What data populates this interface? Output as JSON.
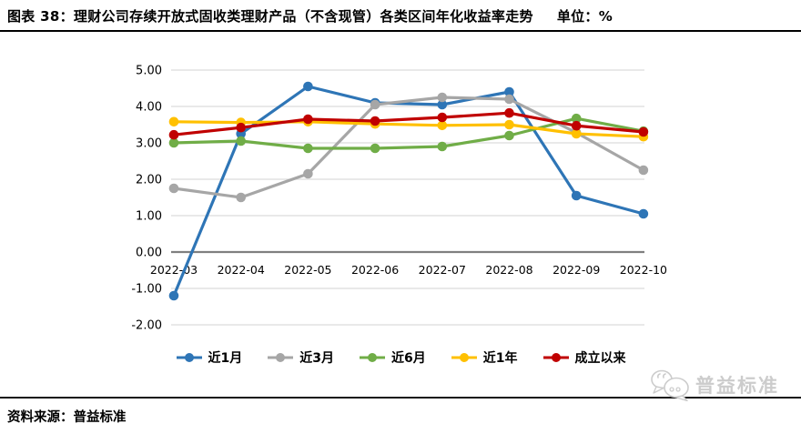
{
  "figure": {
    "title": "图表 38：理财公司存续开放式固收类理财产品（不含现管）各类区间年化收益率走势",
    "unit_label": "单位：%",
    "source": "资料来源：普益标准",
    "watermark_text": "普益标准"
  },
  "chart_data": {
    "type": "line",
    "title": "理财公司存续开放式固收类理财产品（不含现管）各类区间年化收益率走势",
    "unit": "%",
    "categories": [
      "2022-03",
      "2022-04",
      "2022-05",
      "2022-06",
      "2022-07",
      "2022-08",
      "2022-09",
      "2022-10"
    ],
    "series": [
      {
        "name": "近1月",
        "color": "#2E75B6",
        "values": [
          -1.2,
          3.25,
          4.55,
          4.1,
          4.05,
          4.4,
          1.55,
          1.05
        ]
      },
      {
        "name": "近3月",
        "color": "#A6A6A6",
        "values": [
          1.75,
          1.5,
          2.15,
          4.05,
          4.25,
          4.2,
          3.28,
          2.25
        ]
      },
      {
        "name": "近6月",
        "color": "#70AD47",
        "values": [
          3.0,
          3.05,
          2.85,
          2.85,
          2.9,
          3.2,
          3.67,
          3.32
        ]
      },
      {
        "name": "近1年",
        "color": "#FFC000",
        "values": [
          3.58,
          3.56,
          3.58,
          3.52,
          3.48,
          3.5,
          3.25,
          3.17
        ]
      },
      {
        "name": "成立以来",
        "color": "#C00000",
        "values": [
          3.22,
          3.42,
          3.65,
          3.6,
          3.7,
          3.82,
          3.47,
          3.3
        ]
      }
    ],
    "ylim": [
      -2,
      5
    ],
    "ytick_step": 1,
    "ytick_labels": [
      "-2.00",
      "-1.00",
      "0.00",
      "1.00",
      "2.00",
      "3.00",
      "4.00",
      "5.00"
    ],
    "grid": "horizontal",
    "gridline_color": "#DCDCDC",
    "axis_color": "#7F7F7F",
    "legend_position": "bottom",
    "xlabel": "",
    "ylabel": ""
  }
}
